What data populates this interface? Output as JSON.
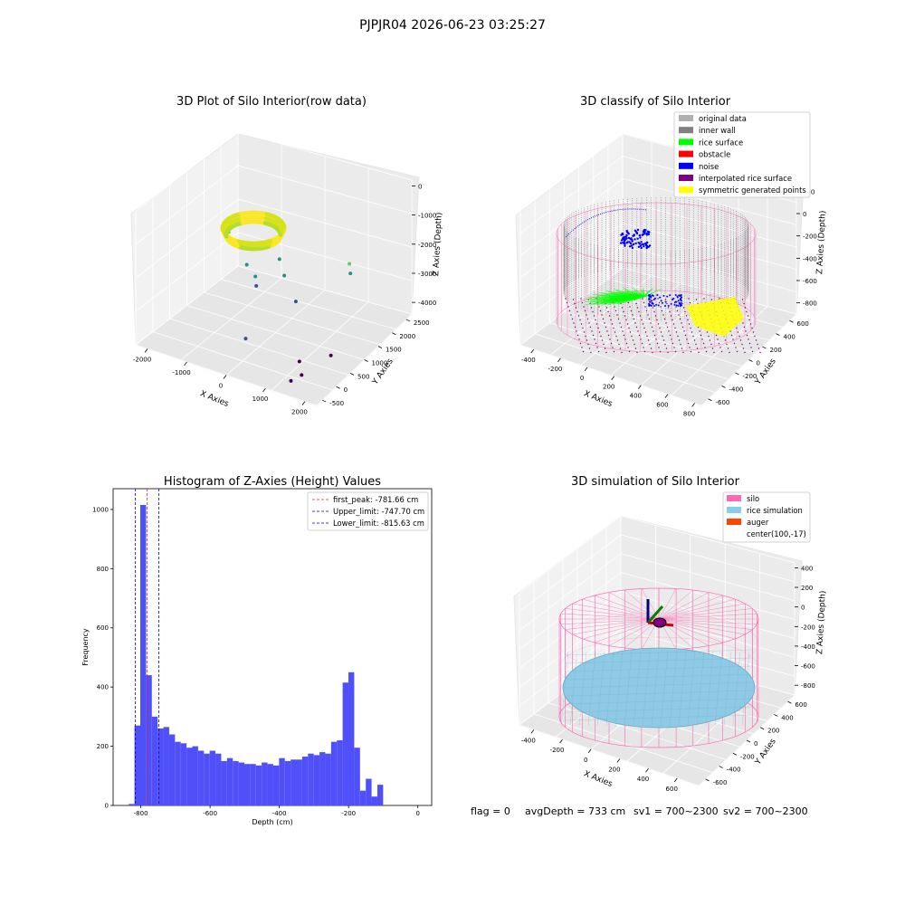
{
  "page_title": "PJPJR04 2026-06-23 03:25:27",
  "status_line": {
    "flag": "flag = 0",
    "avg_depth": "avgDepth = 733 cm",
    "sv1": "sv1 = 700~2300",
    "sv2": "sv2 = 700~2300"
  },
  "colors": {
    "hist_bar": "#5050fa",
    "first_peak_line": "#d62728",
    "limit_line": "#0000cc",
    "wire_pink": "#ff69b4",
    "rice_blue": "#8ecae6",
    "inner_wall_gray": "#808080",
    "rice_surface_green": "#00ff00",
    "obstacle_red": "#ff0000",
    "noise_blue": "#0000ff",
    "interp_purple": "#800080",
    "symmetric_yellow": "#ffff00",
    "original_gray": "#b0b0b0",
    "auger_orange": "#ff4500"
  },
  "chart_data": [
    {
      "type": "scatter",
      "projection": "3d",
      "title": "3D Plot of Silo Interior(row data)",
      "xlabel": "X Axies",
      "ylabel": "Y Axies",
      "zlabel": "Z Axies (Depth)",
      "xticks": [
        "-2000",
        "-1000",
        "0",
        "1000",
        "2000"
      ],
      "yticks": [
        "-500",
        "0",
        "500",
        "1000",
        "1500",
        "2000",
        "2500"
      ],
      "zticks": [
        "-4000",
        "-3000",
        "-2000",
        "-1000",
        "0"
      ],
      "xlim": [
        -2300,
        2300
      ],
      "ylim": [
        -700,
        2700
      ],
      "zlim": [
        -4400,
        200
      ],
      "colormap": "viridis",
      "points": [
        {
          "x": -1600,
          "y": 1500,
          "z": -2000
        },
        {
          "x": -1200,
          "y": 1400,
          "z": -2300
        },
        {
          "x": -900,
          "y": 1200,
          "z": -2600
        },
        {
          "x": -600,
          "y": 1100,
          "z": -2800
        },
        {
          "x": -500,
          "y": 1000,
          "z": -3000
        },
        {
          "x": -200,
          "y": 1400,
          "z": -2300
        },
        {
          "x": 0,
          "y": 1300,
          "z": -2700
        },
        {
          "x": 600,
          "y": 900,
          "z": -3000
        },
        {
          "x": 1400,
          "y": 1700,
          "z": -2100
        },
        {
          "x": 1500,
          "y": 1600,
          "z": -2300
        },
        {
          "x": 200,
          "y": -300,
          "z": -3400
        },
        {
          "x": 1500,
          "y": -200,
          "z": -3700
        },
        {
          "x": 1700,
          "y": -400,
          "z": -3900
        },
        {
          "x": 1500,
          "y": -500,
          "z": -4100
        },
        {
          "x": 1800,
          "y": 500,
          "z": -4000
        }
      ]
    },
    {
      "type": "scatter",
      "projection": "3d",
      "title": "3D classify of Silo Interior",
      "xlabel": "X Axies",
      "ylabel": "Y Axies",
      "zlabel": "Z Axies (Depth)",
      "xticks": [
        "-400",
        "-200",
        "0",
        "200",
        "400",
        "600",
        "800"
      ],
      "yticks": [
        "-600",
        "-400",
        "-200",
        "0",
        "200",
        "400",
        "600"
      ],
      "zticks": [
        "-800",
        "-600",
        "-400",
        "-200",
        "0",
        "200"
      ],
      "xlim": [
        -500,
        850
      ],
      "ylim": [
        -700,
        700
      ],
      "zlim": [
        -900,
        300
      ],
      "legend_position": "upper right",
      "legend": [
        {
          "label": "original data",
          "color": "#b0b0b0"
        },
        {
          "label": "inner wall",
          "color": "#808080"
        },
        {
          "label": "rice surface",
          "color": "#00ff00"
        },
        {
          "label": "obstacle",
          "color": "#ff0000"
        },
        {
          "label": "noise",
          "color": "#0000ff"
        },
        {
          "label": "interpolated rice surface",
          "color": "#800080"
        },
        {
          "label": "symmetric generated points",
          "color": "#ffff00"
        }
      ]
    },
    {
      "type": "bar",
      "title": "Histogram of Z-Axies (Height) Values",
      "xlabel": "Depth (cm)",
      "ylabel": "Frequency",
      "xlim": [
        -880,
        40
      ],
      "ylim": [
        0,
        1070
      ],
      "xticks": [
        "-800",
        "-600",
        "-400",
        "-200",
        "0"
      ],
      "yticks": [
        "0",
        "200",
        "400",
        "600",
        "800",
        "1000"
      ],
      "bin_start": -835,
      "bin_width": 16.7,
      "values": [
        5,
        270,
        1015,
        440,
        300,
        260,
        265,
        240,
        215,
        210,
        195,
        200,
        185,
        175,
        185,
        175,
        150,
        160,
        150,
        145,
        140,
        140,
        135,
        145,
        140,
        135,
        160,
        150,
        155,
        155,
        165,
        175,
        170,
        180,
        175,
        215,
        220,
        415,
        450,
        195,
        50,
        90,
        30,
        70
      ],
      "legend_position": "upper right",
      "vlines": [
        {
          "label": "first_peak: -781.66 cm",
          "x": -781.66,
          "color": "#d62728"
        },
        {
          "label": "Upper_limit: -747.70 cm",
          "x": -747.7,
          "color": "#0000cc"
        },
        {
          "label": "Lower_limit: -815.63 cm",
          "x": -815.63,
          "color": "#0000cc"
        }
      ]
    },
    {
      "type": "surface",
      "projection": "3d",
      "title": "3D simulation of Silo Interior",
      "xlabel": "X Axies",
      "ylabel": "Y Axies",
      "zlabel": "Z Axies (Depth)",
      "xticks": [
        "-400",
        "-200",
        "0",
        "200",
        "400",
        "600"
      ],
      "yticks": [
        "-600",
        "-400",
        "-200",
        "0",
        "200",
        "400",
        "600"
      ],
      "zticks": [
        "-800",
        "-600",
        "-400",
        "-200",
        "0",
        "200",
        "400"
      ],
      "xlim": [
        -500,
        750
      ],
      "ylim": [
        -700,
        700
      ],
      "zlim": [
        -900,
        450
      ],
      "legend_position": "upper right",
      "legend": [
        {
          "label": "silo",
          "color": "#ff69b4"
        },
        {
          "label": "rice simulation",
          "color": "#87ceeb"
        },
        {
          "label": "auger",
          "color": "#ff4500"
        },
        {
          "label": "center(100,-17)",
          "color": ""
        }
      ]
    }
  ]
}
